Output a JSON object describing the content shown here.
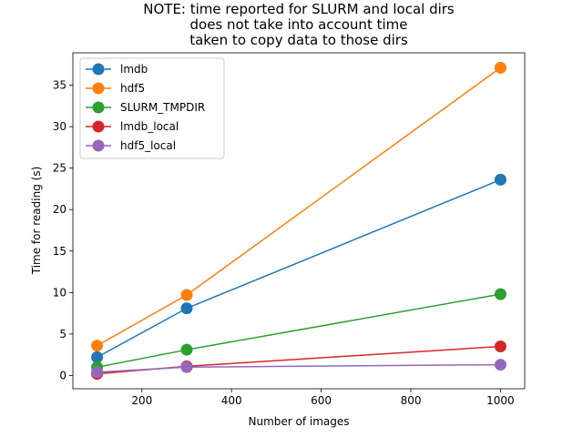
{
  "chart_data": {
    "type": "line",
    "title": [
      "NOTE: time reported for SLURM and local dirs",
      "does not take into account time",
      "taken to copy data to those dirs"
    ],
    "xlabel": "Number of images",
    "ylabel": "Time for reading (s)",
    "x": [
      100,
      300,
      1000
    ],
    "xlim": [
      46,
      1054
    ],
    "ylim": [
      -1.6,
      38.9
    ],
    "xticks": [
      200,
      400,
      600,
      800,
      1000
    ],
    "yticks": [
      0,
      5,
      10,
      15,
      20,
      25,
      30,
      35
    ],
    "grid": false,
    "legend_position": "top-left",
    "series": [
      {
        "name": "lmdb",
        "color": "#1f77b4",
        "values": [
          2.2,
          8.1,
          23.6
        ]
      },
      {
        "name": "hdf5",
        "color": "#ff7f0e",
        "values": [
          3.6,
          9.7,
          37.1
        ]
      },
      {
        "name": "SLURM_TMPDIR",
        "color": "#2ca02c",
        "values": [
          1.0,
          3.1,
          9.8
        ]
      },
      {
        "name": "lmdb_local",
        "color": "#d62728",
        "values": [
          0.2,
          1.1,
          3.5
        ]
      },
      {
        "name": "hdf5_local",
        "color": "#9467bd",
        "values": [
          0.4,
          1.0,
          1.3
        ]
      }
    ]
  }
}
